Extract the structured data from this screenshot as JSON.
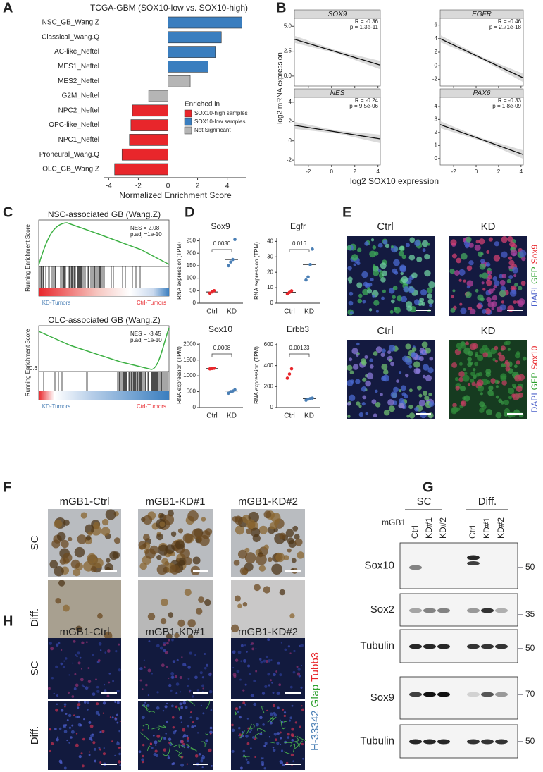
{
  "panel_labels": [
    "A",
    "B",
    "C",
    "D",
    "E",
    "F",
    "G",
    "H"
  ],
  "chart_data": [
    {
      "type": "bar",
      "orientation": "horizontal",
      "title": "TCGA-GBM (SOX10-low vs. SOX10-high)",
      "x_label": "Normalized Enrichment Score",
      "categories": [
        "NSC_GB_Wang.Z",
        "Classical_Wang.Q",
        "AC-like_Neftel",
        "MES1_Neftel",
        "MES2_Neftel",
        "G2M_Neftel",
        "NPC2_Neftel",
        "OPC-like_Neftel",
        "NPC1_Neftel",
        "Proneural_Wang.Q",
        "OLC_GB_Wang.Z"
      ],
      "legend_title": "Enriched in",
      "series": [
        {
          "name": "SOX10-high samples",
          "color": "#e8262b",
          "values": [
            null,
            null,
            null,
            null,
            null,
            null,
            -2.4,
            -2.5,
            -2.6,
            -3.1,
            -3.6
          ]
        },
        {
          "name": "SOX10-low samples",
          "color": "#3a7ebf",
          "values": [
            5.0,
            3.6,
            3.2,
            2.7,
            null,
            null,
            null,
            null,
            null,
            null,
            null
          ]
        },
        {
          "name": "Not Significant",
          "color": "#b5b5b5",
          "values": [
            null,
            null,
            null,
            null,
            1.5,
            -1.3,
            null,
            null,
            null,
            null,
            null
          ]
        }
      ],
      "xlim": [
        -4.3,
        5.3
      ],
      "xticks": [
        -4,
        -2,
        0,
        2,
        4
      ]
    },
    {
      "type": "scatter",
      "y_label": "log2 mRNA expression",
      "x_label": "log2 SOX10 expression",
      "xlim": [
        -3.2,
        4.2
      ],
      "xticks": [
        -2,
        0,
        2,
        4
      ],
      "facets": [
        {
          "title": "SOX9",
          "ylim": [
            -1,
            5.8
          ],
          "yticks": [
            {
              "value": 0,
              "label": "0.0"
            },
            {
              "value": 2.5,
              "label": "2.5"
            },
            {
              "value": 5,
              "label": "5.0"
            }
          ],
          "annotation_r": "R = -0.36",
          "annotation_p": "p = 1.3e-11",
          "fit": {
            "x": [
              -3.2,
              4.2
            ],
            "y": [
              3.7,
              1.1
            ]
          }
        },
        {
          "title": "EGFR",
          "ylim": [
            -3,
            7
          ],
          "yticks": [
            -2,
            0,
            2,
            4,
            6
          ],
          "annotation_r": "R = -0.46",
          "annotation_p": "p = 2.71e-18",
          "fit": {
            "x": [
              -3.2,
              4.2
            ],
            "y": [
              4.0,
              -1.8
            ]
          }
        },
        {
          "title": "NES",
          "ylim": [
            -2.5,
            4.5
          ],
          "yticks": [
            -2,
            0,
            2,
            4
          ],
          "annotation_r": "R = -0.24",
          "annotation_p": "p = 9.5e-06",
          "fit": {
            "x": [
              -3.2,
              4.2
            ],
            "y": [
              1.6,
              0.2
            ]
          }
        },
        {
          "title": "PAX6",
          "ylim": [
            -0.5,
            4.7
          ],
          "yticks": [
            0,
            1,
            2,
            3,
            4
          ],
          "annotation_r": "R = -0.33",
          "annotation_p": "p = 1.8e-09",
          "fit": {
            "x": [
              -3.2,
              4.2
            ],
            "y": [
              2.6,
              0.3
            ]
          }
        }
      ]
    },
    {
      "type": "dot",
      "y_label": "RNA expression (TPM)",
      "panels": [
        {
          "title": "Sox9",
          "p_value": "0.0030",
          "ylim": [
            0,
            260
          ],
          "yticks": [
            0,
            50,
            100,
            150,
            200,
            250
          ],
          "groups": [
            {
              "category": "Ctrl",
              "color": "#e8262b",
              "values": [
                40,
                45,
                50
              ]
            },
            {
              "category": "KD",
              "color": "#4a7fb5",
              "values": [
                150,
                165,
                175,
                255
              ]
            }
          ]
        },
        {
          "title": "Egfr",
          "p_value": "0.016",
          "ylim": [
            0,
            42
          ],
          "yticks": [
            0,
            10,
            20,
            30,
            40
          ],
          "groups": [
            {
              "category": "Ctrl",
              "color": "#e8262b",
              "values": [
                6,
                7,
                8
              ]
            },
            {
              "category": "KD",
              "color": "#4a7fb5",
              "values": [
                15,
                17,
                25,
                35
              ]
            }
          ]
        },
        {
          "title": "Sox10",
          "p_value": "0.0008",
          "ylim": [
            0,
            2050
          ],
          "yticks": [
            0,
            500,
            1000,
            1500,
            2000
          ],
          "groups": [
            {
              "category": "Ctrl",
              "color": "#e8262b",
              "values": [
                1220,
                1230,
                1240
              ]
            },
            {
              "category": "KD",
              "color": "#4a7fb5",
              "values": [
                450,
                500,
                520,
                560
              ]
            }
          ]
        },
        {
          "title": "Erbb3",
          "p_value": "0.00123",
          "ylim": [
            0,
            620
          ],
          "yticks": [
            0,
            200,
            400,
            600
          ],
          "groups": [
            {
              "category": "Ctrl",
              "color": "#e8262b",
              "values": [
                280,
                320,
                370
              ]
            },
            {
              "category": "KD",
              "color": "#4a7fb5",
              "values": [
                70,
                80,
                85,
                90
              ]
            }
          ]
        }
      ]
    }
  ],
  "panel_c": {
    "y_label": "Running Enrichment Score",
    "left_label": "KD-Tumors",
    "right_label": "Ctrl-Tumors",
    "plots": [
      {
        "title": "NSC-associated GB (Wang.Z)",
        "nes": "NES = 2.08",
        "padj": "p.adj =1e-10"
      },
      {
        "title": "OLC-associated GB (Wang.Z)",
        "nes": "NES = -3.45",
        "padj": "p.adj =1e-10",
        "tick": "-0.6"
      }
    ]
  },
  "panel_e": {
    "columns": [
      "Ctrl",
      "KD"
    ],
    "rows": [
      {
        "stain": [
          "DAPI",
          "GFP",
          "Sox9"
        ]
      },
      {
        "stain": [
          "DAPI",
          "GFP",
          "Sox10"
        ]
      }
    ]
  },
  "panel_f": {
    "columns": [
      "mGB1-Ctrl",
      "mGB1-KD#1",
      "mGB1-KD#2"
    ],
    "rows": [
      "SC",
      "Diff."
    ]
  },
  "panel_g": {
    "groups": [
      "SC",
      "Diff."
    ],
    "cell_line": "mGB1",
    "lanes": [
      "Ctrl",
      "KD#1",
      "KD#2",
      "Ctrl",
      "KD#1",
      "KD#2"
    ],
    "blots": [
      {
        "protein": "Sox10",
        "marker": 50
      },
      {
        "protein": "Sox2",
        "marker": 35
      },
      {
        "protein": "Tubulin",
        "marker": 50
      },
      {
        "protein": "Sox9",
        "marker": 70
      },
      {
        "protein": "Tubulin",
        "marker": 50
      }
    ]
  },
  "panel_h": {
    "columns": [
      "mGB1-Ctrl",
      "mGB1-KD#1",
      "mGB1-KD#2"
    ],
    "rows": [
      "SC",
      "Diff."
    ],
    "stain": [
      "H-33342",
      "Gfap",
      "Tubb3"
    ]
  }
}
